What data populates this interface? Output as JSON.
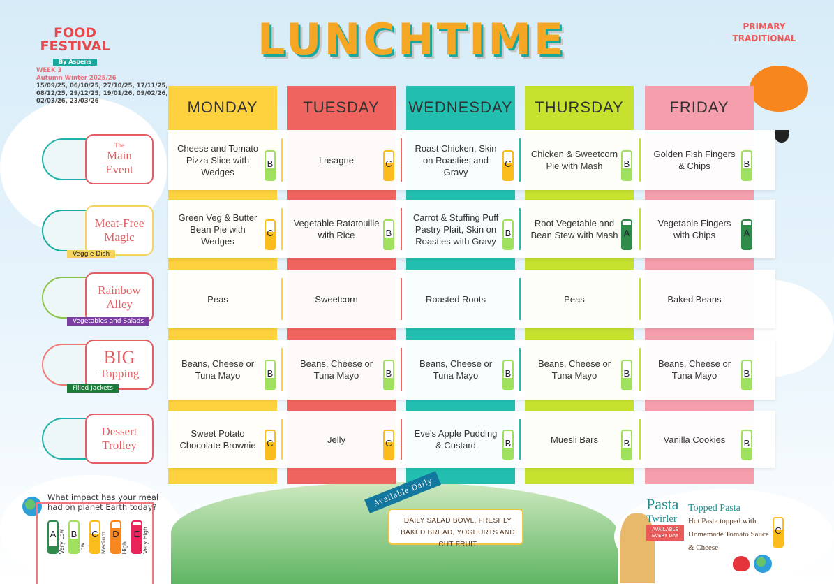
{
  "logo": {
    "line1": "FOOD",
    "line2": "FESTIVAL",
    "ribbon": "By Aspens"
  },
  "week": "WEEK 3",
  "season": "Autumn Winter 2025/26",
  "dates": "15/09/25, 06/10/25, 27/10/25, 17/11/25, 08/12/25, 29/12/25, 19/01/26, 09/02/26, 02/03/26, 23/03/26",
  "title": "LUNCHTIME",
  "menu_type": {
    "line1": "PRIMARY",
    "line2": "TRADITIONAL"
  },
  "rating_colors": {
    "A": "#2e8b4a",
    "B": "#9fe05e",
    "C": "#fbbd1e",
    "D": "#f7871e",
    "E": "#e8245a"
  },
  "days": [
    {
      "name": "MONDAY",
      "color": "#fdd23e"
    },
    {
      "name": "TUESDAY",
      "color": "#f0645f"
    },
    {
      "name": "WEDNESDAY",
      "color": "#22bfb0"
    },
    {
      "name": "THURSDAY",
      "color": "#c6e22f"
    },
    {
      "name": "FRIDAY",
      "color": "#f59eac"
    }
  ],
  "sections": [
    {
      "small": "The",
      "big1": "Main",
      "big2": "Event",
      "tag": "",
      "color": "#e35d63",
      "dishes": [
        {
          "text": "Cheese and Tomato Pizza Slice with Wedges",
          "rating": "B"
        },
        {
          "text": "Lasagne",
          "rating": "C"
        },
        {
          "text": "Roast Chicken, Skin on Roasties and Gravy",
          "rating": "C"
        },
        {
          "text": "Chicken & Sweetcorn Pie with Mash",
          "rating": "B"
        },
        {
          "text": "Golden Fish Fingers & Chips",
          "rating": "B"
        }
      ]
    },
    {
      "small": "",
      "big1": "Meat-Free",
      "big2": "Magic",
      "tag": "Veggie Dish",
      "color": "#f4d35e",
      "dishes": [
        {
          "text": "Green Veg & Butter Bean Pie with Wedges",
          "rating": "C"
        },
        {
          "text": "Vegetable Ratatouille with Rice",
          "rating": "B"
        },
        {
          "text": "Carrot & Stuffing Puff Pastry Plait, Skin on Roasties with Gravy",
          "rating": "B"
        },
        {
          "text": "Root Vegetable and Bean Stew with Mash",
          "rating": "A"
        },
        {
          "text": "Vegetable Fingers with Chips",
          "rating": "A"
        }
      ]
    },
    {
      "small": "",
      "big1": "Rainbow",
      "big2": "Alley",
      "tag": "Vegetables and Salads",
      "color": "#7a3fa0",
      "dishes": [
        {
          "text": "Peas",
          "rating": ""
        },
        {
          "text": "Sweetcorn",
          "rating": ""
        },
        {
          "text": "Roasted Roots",
          "rating": ""
        },
        {
          "text": "Peas",
          "rating": ""
        },
        {
          "text": "Baked Beans",
          "rating": ""
        }
      ]
    },
    {
      "small": "",
      "big1": "BIG",
      "big2": "Topping",
      "tag": "Filled Jackets",
      "color": "#1e7a3a",
      "dishes": [
        {
          "text": "Beans, Cheese or Tuna Mayo",
          "rating": "B"
        },
        {
          "text": "Beans, Cheese or Tuna Mayo",
          "rating": "B"
        },
        {
          "text": "Beans, Cheese or Tuna Mayo",
          "rating": "B"
        },
        {
          "text": "Beans, Cheese or Tuna Mayo",
          "rating": "B"
        },
        {
          "text": "Beans, Cheese or Tuna Mayo",
          "rating": "B"
        }
      ]
    },
    {
      "small": "",
      "big1": "Dessert",
      "big2": "Trolley",
      "tag": "",
      "color": "#e35d63",
      "dishes": [
        {
          "text": "Sweet Potato Chocolate Brownie",
          "rating": "C"
        },
        {
          "text": "Jelly",
          "rating": "C"
        },
        {
          "text": "Eve's Apple Pudding & Custard",
          "rating": "B"
        },
        {
          "text": "Muesli Bars",
          "rating": "B"
        },
        {
          "text": "Vanilla Cookies",
          "rating": "B"
        }
      ]
    }
  ],
  "legend": {
    "question": "What impact has your meal had on planet Earth today?",
    "levels": [
      {
        "grade": "A",
        "label": "Very Low"
      },
      {
        "grade": "B",
        "label": "Low"
      },
      {
        "grade": "C",
        "label": "Medium"
      },
      {
        "grade": "D",
        "label": "High"
      },
      {
        "grade": "E",
        "label": "Very High"
      }
    ]
  },
  "available_daily": {
    "ribbon": "Available Daily",
    "text": "DAILY SALAD BOWL, FRESHLY BAKED BREAD, YOGHURTS AND CUT FRUIT"
  },
  "pasta": {
    "line1": "Pasta",
    "line2": "Twirler",
    "badge": "AVAILABLE EVERY DAY",
    "heading": "Topped Pasta",
    "line_a": "Hot Pasta topped with",
    "line_b": "Homemade Tomato Sauce",
    "line_c": "& Cheese",
    "rating": "C"
  }
}
